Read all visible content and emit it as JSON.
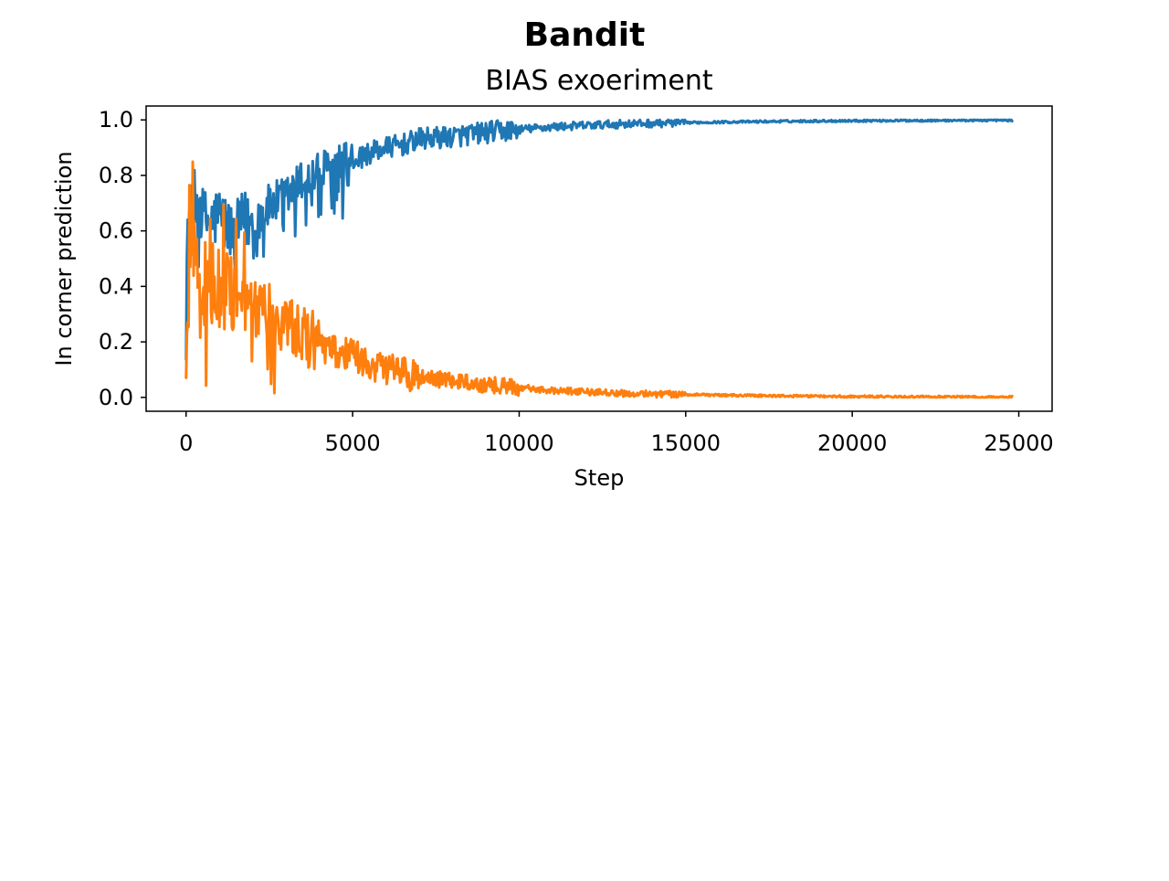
{
  "figure": {
    "suptitle": "Bandit"
  },
  "chart_data": {
    "type": "line",
    "title": "BIAS exoeriment",
    "xlabel": "Step",
    "ylabel": "In corner prediction",
    "xlim": [
      -1200,
      26000
    ],
    "ylim": [
      -0.05,
      1.05
    ],
    "x_ticks": [
      0,
      5000,
      10000,
      15000,
      20000,
      25000
    ],
    "y_ticks": [
      0.0,
      0.2,
      0.4,
      0.6,
      0.8,
      1.0
    ],
    "x_tick_labels": [
      "0",
      "5000",
      "10000",
      "15000",
      "20000",
      "25000"
    ],
    "y_tick_labels": [
      "0.0",
      "0.2",
      "0.4",
      "0.6",
      "0.8",
      "1.0"
    ],
    "grid": false,
    "legend": null,
    "series": [
      {
        "color": "#1f77b4",
        "x": [
          0,
          100,
          200,
          300,
          400,
          500,
          750,
          1000,
          1250,
          1500,
          1750,
          2000,
          2500,
          3000,
          3500,
          4000,
          4500,
          5000,
          5500,
          6000,
          6500,
          7000,
          8000,
          9000,
          10000,
          11000,
          12000,
          13000,
          14000,
          15000,
          16000,
          18000,
          20000,
          22000,
          24000,
          24800
        ],
        "values": [
          0.44,
          0.66,
          0.74,
          0.68,
          0.72,
          0.65,
          0.63,
          0.66,
          0.61,
          0.6,
          0.64,
          0.63,
          0.69,
          0.72,
          0.78,
          0.81,
          0.83,
          0.85,
          0.88,
          0.9,
          0.91,
          0.93,
          0.94,
          0.955,
          0.965,
          0.975,
          0.98,
          0.985,
          0.988,
          0.99,
          0.992,
          0.995,
          0.997,
          0.998,
          0.999,
          0.999
        ]
      },
      {
        "color": "#ff7f0e",
        "x": [
          0,
          100,
          200,
          300,
          400,
          500,
          750,
          1000,
          1250,
          1500,
          1750,
          2000,
          2500,
          3000,
          3500,
          4000,
          4500,
          5000,
          5500,
          6000,
          6500,
          7000,
          8000,
          9000,
          10000,
          11000,
          12000,
          13000,
          14000,
          15000,
          16000,
          18000,
          20000,
          22000,
          24000,
          24800
        ],
        "values": [
          0.1,
          0.42,
          0.55,
          0.45,
          0.5,
          0.4,
          0.42,
          0.38,
          0.4,
          0.38,
          0.35,
          0.33,
          0.3,
          0.26,
          0.22,
          0.19,
          0.16,
          0.15,
          0.12,
          0.1,
          0.09,
          0.07,
          0.06,
          0.045,
          0.035,
          0.025,
          0.02,
          0.015,
          0.012,
          0.01,
          0.008,
          0.005,
          0.003,
          0.002,
          0.001,
          0.001
        ]
      }
    ]
  }
}
